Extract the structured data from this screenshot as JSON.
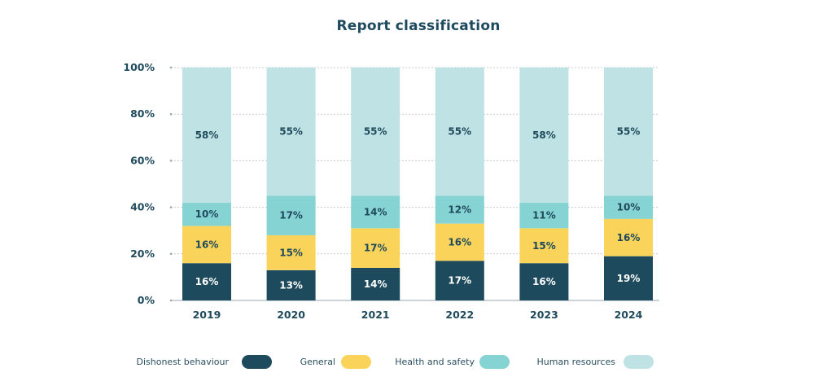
{
  "chart_data": {
    "type": "bar",
    "stacked": true,
    "percent_axis": true,
    "title": "Report classification",
    "categories": [
      "2019",
      "2020",
      "2021",
      "2022",
      "2023",
      "2024"
    ],
    "ylim": [
      0,
      100
    ],
    "yticks": [
      "0%",
      "20%",
      "40%",
      "60%",
      "80%",
      "100%"
    ],
    "grid": true,
    "legend_position": "bottom",
    "series": [
      {
        "name": "Dishonest behaviour",
        "color": "#1d4a5c",
        "label_color": "#ffffff",
        "values": [
          16,
          13,
          14,
          17,
          16,
          19
        ],
        "labels": [
          "16%",
          "13%",
          "14%",
          "17%",
          "16%",
          "19%"
        ]
      },
      {
        "name": "General",
        "color": "#fad45a",
        "label_color": "#1f4a5c",
        "values": [
          16,
          15,
          17,
          16,
          15,
          16
        ],
        "labels": [
          "16%",
          "15%",
          "17%",
          "16%",
          "15%",
          "16%"
        ]
      },
      {
        "name": "Health and safety",
        "color": "#86d3d4",
        "label_color": "#1f4a5c",
        "values": [
          10,
          17,
          14,
          12,
          11,
          10
        ],
        "labels": [
          "10%",
          "17%",
          "14%",
          "12%",
          "11%",
          "10%"
        ]
      },
      {
        "name": "Human resources",
        "color": "#bfe3e5",
        "label_color": "#1f4a5c",
        "values": [
          58,
          55,
          55,
          55,
          58,
          55
        ],
        "labels": [
          "58%",
          "55%",
          "55%",
          "55%",
          "58%",
          "55%"
        ]
      }
    ]
  }
}
